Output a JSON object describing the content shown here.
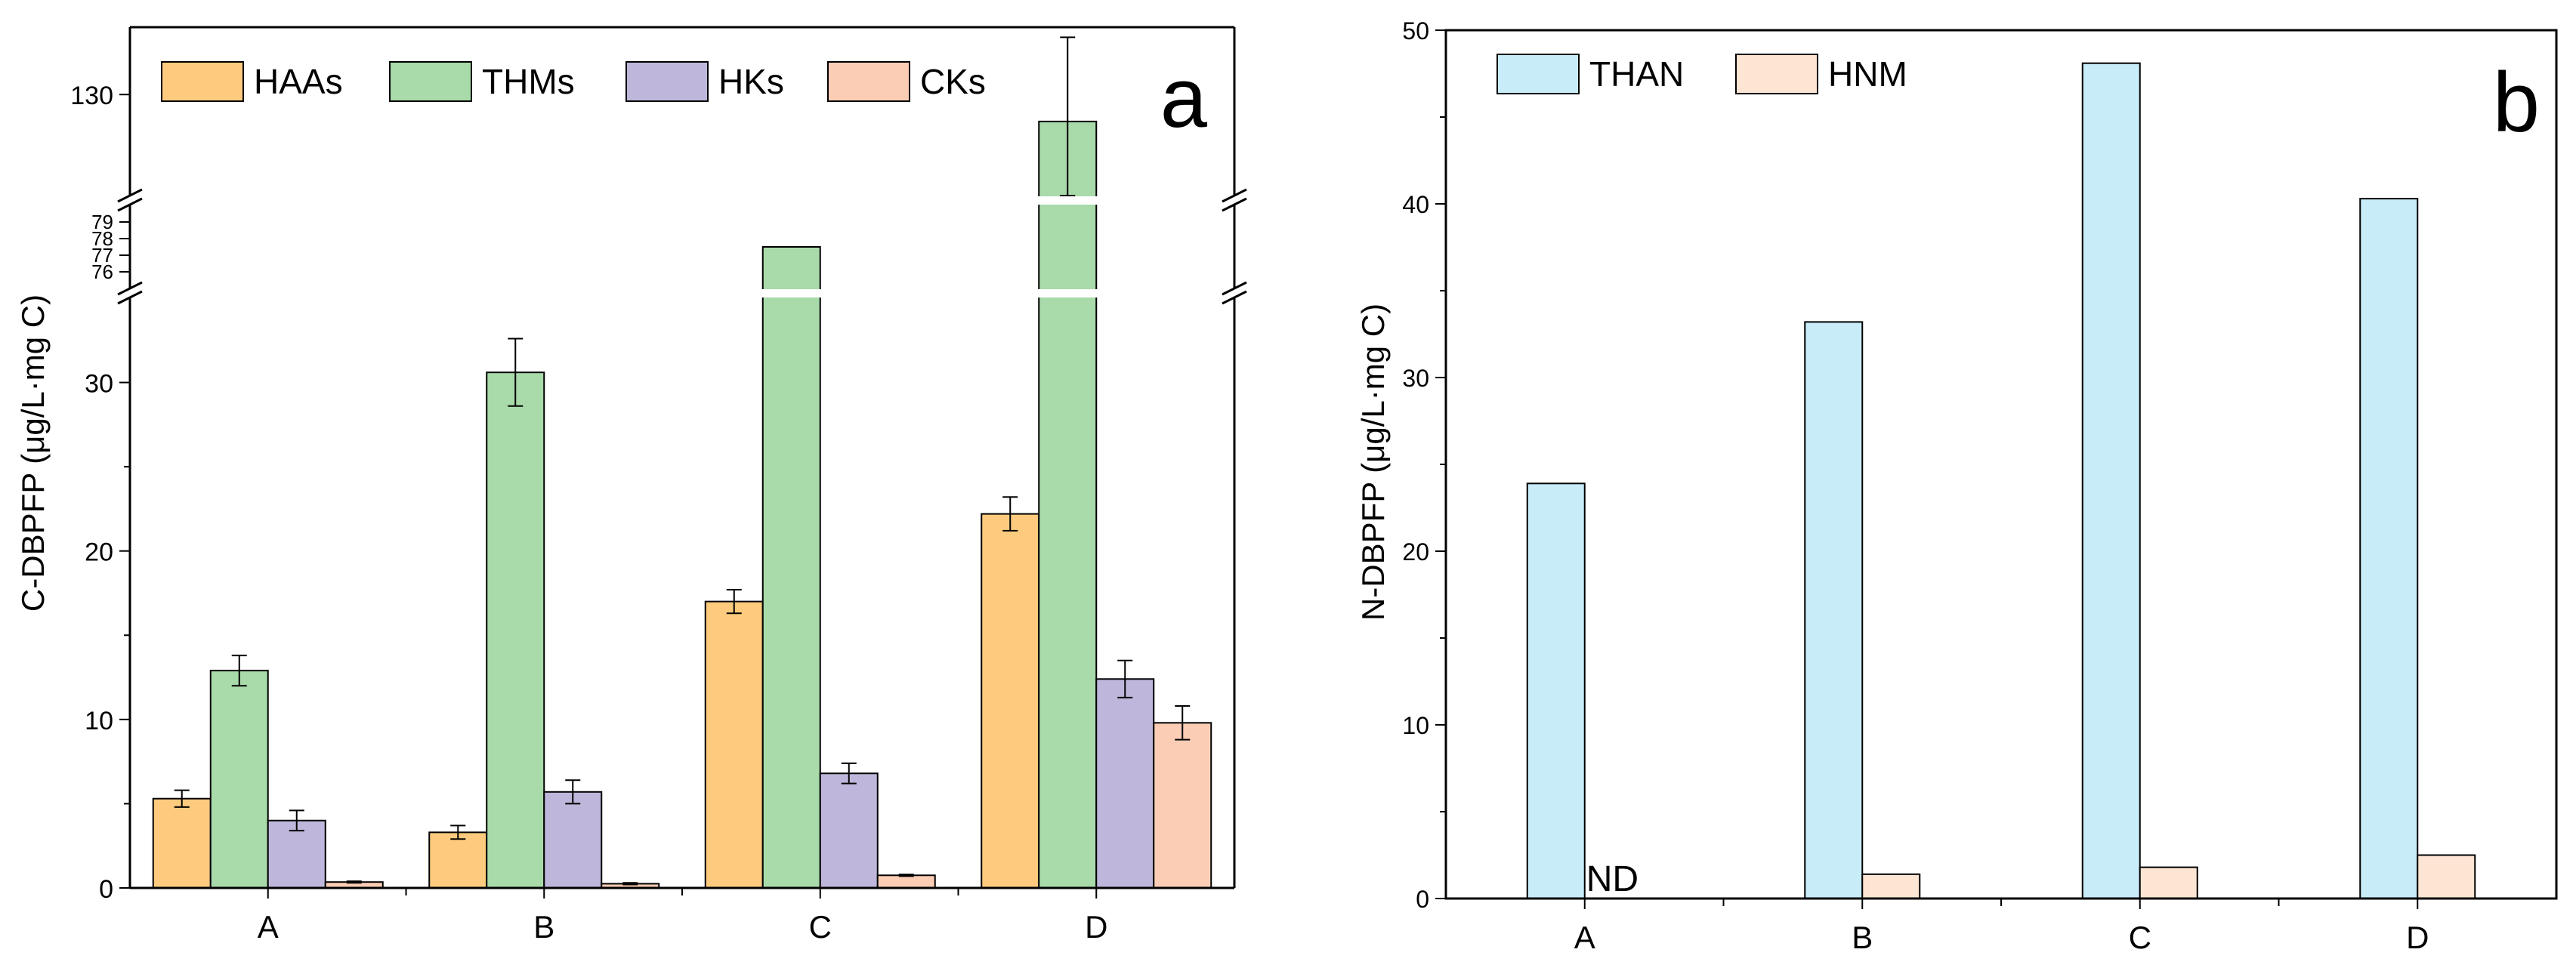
{
  "chart_data": [
    {
      "id": "a",
      "type": "bar",
      "panel_label": "a",
      "ylabel": "C-DBPFP (μg/L·mg C)",
      "categories": [
        "A",
        "B",
        "C",
        "D"
      ],
      "y_segments": [
        {
          "range": [
            0,
            35
          ],
          "ticks": [
            0,
            10,
            20,
            30
          ]
        },
        {
          "range": [
            75,
            80
          ],
          "ticks": [
            76,
            77,
            78,
            79
          ]
        },
        {
          "range": [
            115,
            140
          ],
          "ticks": [
            130
          ]
        }
      ],
      "series": [
        {
          "name": "HAAs",
          "color": "#FECB7E",
          "values": [
            5.3,
            3.3,
            17.0,
            22.2
          ],
          "errors": [
            0.5,
            0.4,
            0.7,
            1.0
          ]
        },
        {
          "name": "THMs",
          "color": "#A8DAAA",
          "values": [
            12.9,
            30.6,
            77.5,
            126.0
          ],
          "errors": [
            0.9,
            2.0,
            null,
            12.5
          ]
        },
        {
          "name": "HKs",
          "color": "#BFB7DB",
          "values": [
            4.0,
            5.7,
            6.8,
            12.4
          ],
          "errors": [
            0.6,
            0.7,
            0.6,
            1.1
          ]
        },
        {
          "name": "CKs",
          "color": "#FCCDB5",
          "values": [
            0.35,
            0.25,
            0.75,
            9.8
          ],
          "errors": [
            0.05,
            0.05,
            0.05,
            1.0
          ]
        }
      ],
      "legend_position": "top-left"
    },
    {
      "id": "b",
      "type": "bar",
      "panel_label": "b",
      "ylabel": "N-DBPFP (μg/L·mg C)",
      "categories": [
        "A",
        "B",
        "C",
        "D"
      ],
      "ylim": [
        0,
        50
      ],
      "yticks": [
        0,
        10,
        20,
        30,
        40,
        50
      ],
      "series": [
        {
          "name": "THAN",
          "color": "#C9ECF9",
          "values": [
            23.9,
            33.2,
            48.1,
            40.3
          ]
        },
        {
          "name": "HNM",
          "color": "#FDE5D3",
          "values": [
            0,
            1.4,
            1.8,
            2.5
          ]
        }
      ],
      "annotations": [
        {
          "text": "ND",
          "category": "A",
          "series": "HNM"
        }
      ],
      "legend_position": "top-left"
    }
  ]
}
